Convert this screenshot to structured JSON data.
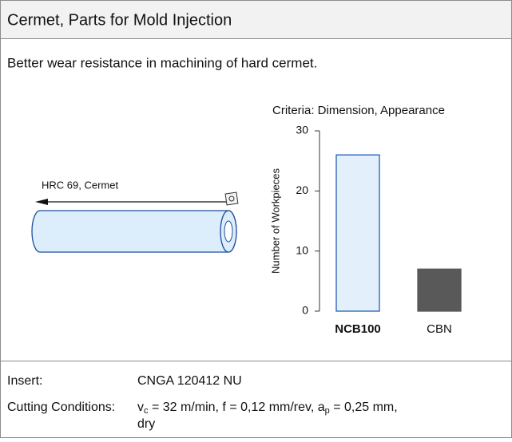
{
  "header": {
    "title": "Cermet, Parts for Mold Injection"
  },
  "description": "Better wear resistance in machining of hard cermet.",
  "illustration": {
    "label": "HRC 69, Cermet"
  },
  "chart_data": {
    "type": "bar",
    "title": "Criteria: Dimension, Appearance",
    "y_label": "Number of Workpieces",
    "categories": [
      "NCB100",
      "CBN"
    ],
    "values": [
      26,
      7
    ],
    "colors": [
      "#e3f0fc",
      "#595959"
    ],
    "edgecolors": [
      "#1f5fb4",
      "#595959"
    ],
    "ylim": [
      0,
      30
    ],
    "yticks": [
      0,
      10,
      20,
      30
    ]
  },
  "specs": {
    "rows": [
      {
        "label": "Insert:",
        "value": [
          "CNGA 120412 NU"
        ]
      },
      {
        "label": "Cutting Conditions:",
        "value": [
          "v",
          "c",
          " = 32 m/min, f = 0,12 mm/rev, a",
          "p",
          " = 0,25 mm,",
          "dry"
        ]
      }
    ]
  }
}
